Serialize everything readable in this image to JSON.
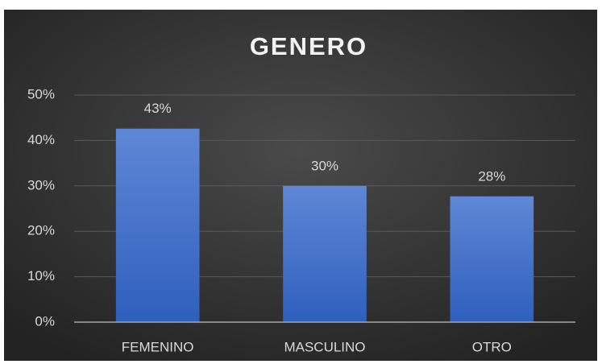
{
  "chart_data": {
    "type": "bar",
    "title": "GENERO",
    "categories": [
      "FEMENINO",
      "MASCULINO",
      "OTRO"
    ],
    "values": [
      42.6,
      30,
      27.7
    ],
    "value_labels": [
      "43%",
      "30%",
      "28%"
    ],
    "color": "#4472c4",
    "ylim": [
      0,
      50
    ],
    "yticks": [
      {
        "value": 0,
        "label": "0%"
      },
      {
        "value": 10,
        "label": "10%"
      },
      {
        "value": 20,
        "label": "20%"
      },
      {
        "value": 30,
        "label": "30%"
      },
      {
        "value": 40,
        "label": "40%"
      },
      {
        "value": 50,
        "label": "50%"
      }
    ],
    "grid": true
  }
}
